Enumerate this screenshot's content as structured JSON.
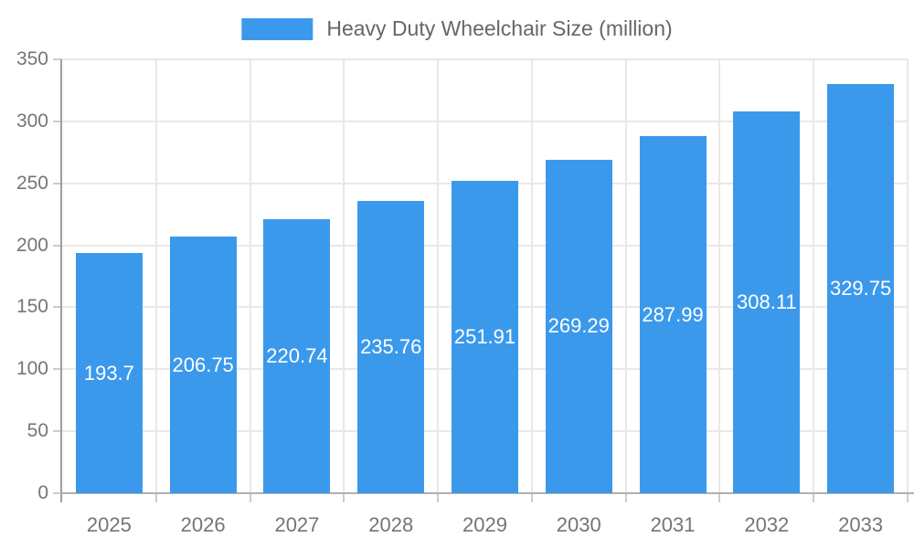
{
  "chart_data": {
    "type": "bar",
    "title": "",
    "legend": "Heavy Duty Wheelchair Size (million)",
    "legend_position": "top",
    "categories": [
      "2025",
      "2026",
      "2027",
      "2028",
      "2029",
      "2030",
      "2031",
      "2032",
      "2033"
    ],
    "values": [
      193.7,
      206.75,
      220.74,
      235.76,
      251.91,
      269.29,
      287.99,
      308.11,
      329.75
    ],
    "value_labels": [
      "193.7",
      "206.75",
      "220.74",
      "235.76",
      "251.91",
      "269.29",
      "287.99",
      "308.11",
      "329.75"
    ],
    "xlabel": "",
    "ylabel": "",
    "ylim": [
      0,
      350
    ],
    "y_ticks": [
      0,
      50,
      100,
      150,
      200,
      250,
      300,
      350
    ],
    "grid": true,
    "colors": {
      "bar": "#3b99ec",
      "value_label": "#ffffff",
      "axis_text": "#757575",
      "legend_text": "#666666",
      "grid_line": "#e8e8e8",
      "axis_line_y": "#9e9e9e",
      "axis_line_x": "#b0b0b0",
      "tick_line": "#cccccc"
    }
  }
}
